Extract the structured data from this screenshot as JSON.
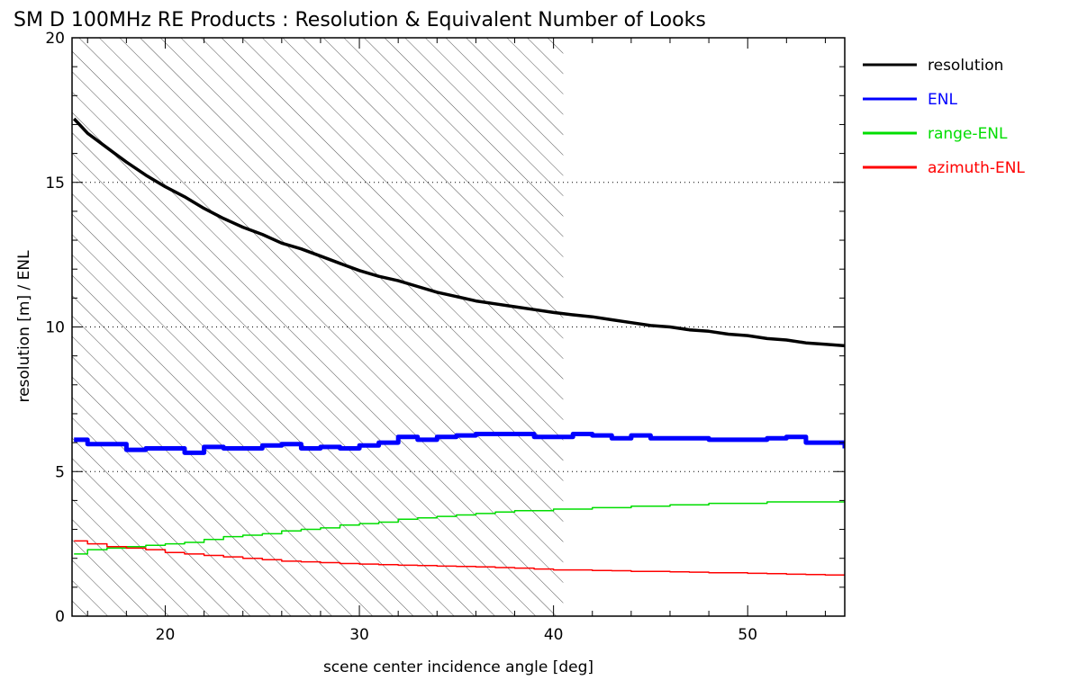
{
  "chart_data": {
    "type": "line",
    "title": "SM D 100MHz RE Products : Resolution & Equivalent Number of Looks",
    "xlabel": "scene center incidence angle [deg]",
    "ylabel": "resolution [m] / ENL",
    "xlim": [
      15.2,
      55
    ],
    "ylim": [
      0,
      20
    ],
    "x_ticks": [
      "20",
      "30",
      "40",
      "50"
    ],
    "y_ticks": [
      "0",
      "5",
      "10",
      "15",
      "20"
    ],
    "grid": "dotted horizontal at 5, 10, 15",
    "shaded_region": {
      "x_from": 15.2,
      "x_to": 40.5,
      "pattern": "diagonal hatching"
    },
    "legend_position": "right, outside plot",
    "series": [
      {
        "name": "resolution",
        "color": "#000000",
        "x": [
          15.3,
          16,
          17,
          18,
          19,
          20,
          21,
          22,
          23,
          24,
          25,
          26,
          27,
          28,
          29,
          30,
          31,
          32,
          33,
          34,
          35,
          36,
          37,
          38,
          39,
          40,
          41,
          42,
          43,
          44,
          45,
          46,
          47,
          48,
          49,
          50,
          51,
          52,
          53,
          54,
          55
        ],
        "values": [
          17.2,
          16.7,
          16.2,
          15.7,
          15.25,
          14.85,
          14.5,
          14.1,
          13.75,
          13.45,
          13.2,
          12.9,
          12.7,
          12.45,
          12.2,
          11.95,
          11.75,
          11.6,
          11.4,
          11.2,
          11.05,
          10.9,
          10.8,
          10.7,
          10.6,
          10.5,
          10.42,
          10.35,
          10.25,
          10.15,
          10.05,
          10.0,
          9.9,
          9.85,
          9.75,
          9.7,
          9.6,
          9.55,
          9.45,
          9.4,
          9.35
        ]
      },
      {
        "name": "ENL",
        "color": "#0000ff",
        "x": [
          15.3,
          16,
          17,
          18,
          19,
          20,
          21,
          22,
          23,
          24,
          25,
          26,
          27,
          28,
          29,
          30,
          31,
          32,
          33,
          34,
          35,
          36,
          37,
          38,
          39,
          40,
          41,
          42,
          43,
          44,
          45,
          46,
          47,
          48,
          49,
          50,
          51,
          52,
          53,
          54,
          55
        ],
        "values": [
          6.1,
          5.95,
          5.95,
          5.75,
          5.8,
          5.8,
          5.65,
          5.85,
          5.8,
          5.8,
          5.9,
          5.95,
          5.8,
          5.85,
          5.8,
          5.9,
          6.0,
          6.2,
          6.1,
          6.2,
          6.25,
          6.3,
          6.3,
          6.3,
          6.2,
          6.2,
          6.3,
          6.25,
          6.15,
          6.25,
          6.15,
          6.15,
          6.15,
          6.1,
          6.1,
          6.1,
          6.15,
          6.2,
          6.0,
          6.0,
          5.8
        ]
      },
      {
        "name": "range-ENL",
        "color": "#00dd00",
        "x": [
          15.3,
          16,
          17,
          18,
          19,
          20,
          21,
          22,
          23,
          24,
          25,
          26,
          27,
          28,
          29,
          30,
          31,
          32,
          33,
          34,
          35,
          36,
          37,
          38,
          39,
          40,
          41,
          42,
          43,
          44,
          45,
          46,
          47,
          48,
          49,
          50,
          51,
          52,
          53,
          54,
          55
        ],
        "values": [
          2.15,
          2.3,
          2.35,
          2.4,
          2.45,
          2.5,
          2.55,
          2.65,
          2.75,
          2.8,
          2.85,
          2.95,
          3.0,
          3.05,
          3.15,
          3.2,
          3.25,
          3.35,
          3.4,
          3.45,
          3.5,
          3.55,
          3.6,
          3.65,
          3.65,
          3.7,
          3.7,
          3.75,
          3.75,
          3.8,
          3.8,
          3.85,
          3.85,
          3.9,
          3.9,
          3.9,
          3.95,
          3.95,
          3.95,
          3.95,
          4.0
        ]
      },
      {
        "name": "azimuth-ENL",
        "color": "#ff0000",
        "x": [
          15.3,
          16,
          17,
          18,
          19,
          20,
          21,
          22,
          23,
          24,
          25,
          26,
          27,
          28,
          29,
          30,
          31,
          32,
          33,
          34,
          35,
          36,
          37,
          38,
          39,
          40,
          41,
          42,
          43,
          44,
          45,
          46,
          47,
          48,
          49,
          50,
          51,
          52,
          53,
          54,
          55
        ],
        "values": [
          2.6,
          2.5,
          2.4,
          2.35,
          2.3,
          2.2,
          2.15,
          2.1,
          2.05,
          2.0,
          1.95,
          1.9,
          1.88,
          1.85,
          1.82,
          1.8,
          1.78,
          1.76,
          1.75,
          1.73,
          1.72,
          1.7,
          1.68,
          1.66,
          1.63,
          1.6,
          1.6,
          1.58,
          1.57,
          1.55,
          1.55,
          1.53,
          1.52,
          1.5,
          1.5,
          1.48,
          1.47,
          1.45,
          1.44,
          1.42,
          1.4
        ]
      }
    ]
  }
}
